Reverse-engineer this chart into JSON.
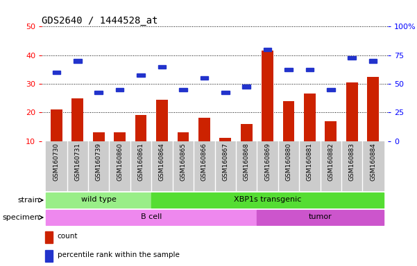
{
  "title": "GDS2640 / 1444528_at",
  "samples": [
    "GSM160730",
    "GSM160731",
    "GSM160739",
    "GSM160860",
    "GSM160861",
    "GSM160864",
    "GSM160865",
    "GSM160866",
    "GSM160867",
    "GSM160868",
    "GSM160869",
    "GSM160880",
    "GSM160881",
    "GSM160882",
    "GSM160883",
    "GSM160884"
  ],
  "count_values": [
    21.0,
    25.0,
    13.0,
    13.0,
    19.0,
    24.5,
    13.0,
    18.0,
    11.0,
    16.0,
    41.5,
    24.0,
    26.5,
    17.0,
    30.5,
    32.5
  ],
  "percentile_values": [
    34,
    38,
    27,
    28,
    33,
    36,
    28,
    32,
    27,
    29,
    42,
    35,
    35,
    28,
    39,
    38
  ],
  "ylim_left": [
    10,
    50
  ],
  "ylim_right": [
    0,
    100
  ],
  "yticks_left": [
    10,
    20,
    30,
    40,
    50
  ],
  "yticks_right": [
    0,
    25,
    50,
    75,
    100
  ],
  "ytick_labels_right": [
    "0",
    "25",
    "50",
    "75",
    "100%"
  ],
  "bar_color": "#cc2200",
  "percentile_color": "#2233cc",
  "plot_bg": "#ffffff",
  "xtick_bg": "#cccccc",
  "strain_colors": [
    "#99ee88",
    "#55dd33"
  ],
  "strain_labels": [
    "wild type",
    "XBP1s transgenic"
  ],
  "strain_starts": [
    0,
    5
  ],
  "strain_ends": [
    4,
    15
  ],
  "specimen_colors": [
    "#ee88ee",
    "#cc55cc"
  ],
  "specimen_labels": [
    "B cell",
    "tumor"
  ],
  "specimen_starts": [
    0,
    10
  ],
  "specimen_ends": [
    9,
    15
  ],
  "legend_items": [
    {
      "label": "count",
      "color": "#cc2200"
    },
    {
      "label": "percentile rank within the sample",
      "color": "#2233cc"
    }
  ],
  "title_fontsize": 10,
  "tick_fontsize": 6.5,
  "annot_fontsize": 8
}
